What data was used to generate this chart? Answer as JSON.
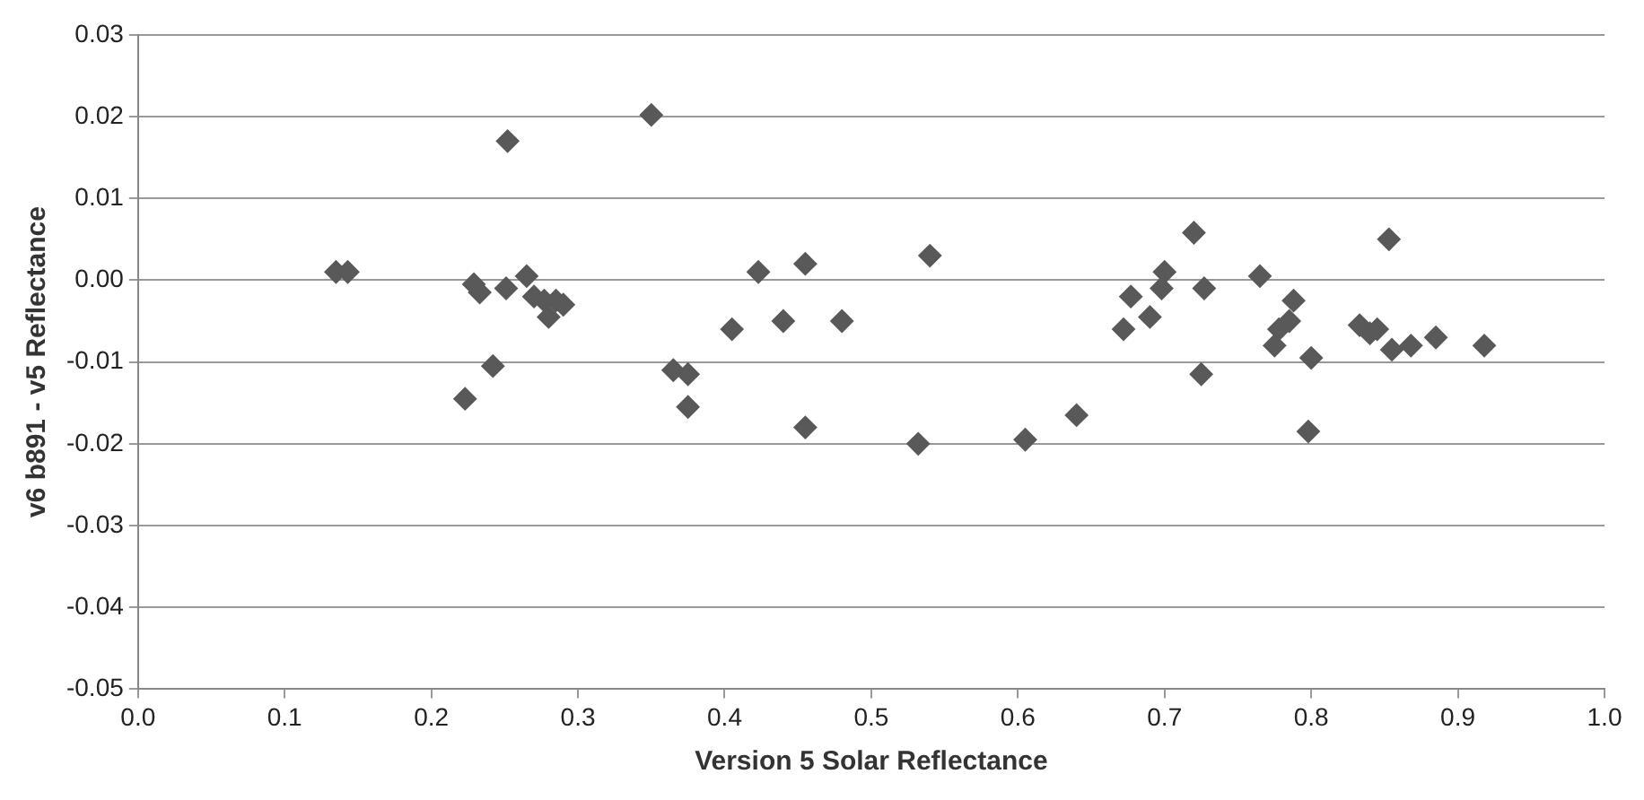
{
  "chart_data": {
    "type": "scatter",
    "xlabel": "Version 5 Solar Reflectance",
    "ylabel": "v6 b891 - v5 Reflectance",
    "x": [
      0.135,
      0.143,
      0.223,
      0.229,
      0.233,
      0.242,
      0.251,
      0.252,
      0.265,
      0.27,
      0.277,
      0.28,
      0.285,
      0.29,
      0.35,
      0.365,
      0.375,
      0.375,
      0.405,
      0.423,
      0.44,
      0.455,
      0.455,
      0.48,
      0.532,
      0.54,
      0.605,
      0.64,
      0.672,
      0.677,
      0.69,
      0.698,
      0.7,
      0.72,
      0.725,
      0.727,
      0.765,
      0.775,
      0.778,
      0.785,
      0.788,
      0.798,
      0.8,
      0.833,
      0.84,
      0.845,
      0.853,
      0.855,
      0.868,
      0.885,
      0.918
    ],
    "values": [
      0.001,
      0.001,
      -0.0145,
      -0.0005,
      -0.0015,
      -0.0105,
      -0.001,
      0.017,
      0.0005,
      -0.002,
      -0.0025,
      -0.0045,
      -0.0025,
      -0.003,
      0.0202,
      -0.011,
      -0.0115,
      -0.0155,
      -0.006,
      0.001,
      -0.005,
      0.002,
      -0.018,
      -0.005,
      -0.02,
      0.003,
      -0.0195,
      -0.0165,
      -0.006,
      -0.002,
      -0.0045,
      -0.001,
      0.001,
      0.0058,
      -0.0115,
      -0.001,
      0.0005,
      -0.008,
      -0.006,
      -0.005,
      -0.0025,
      -0.0185,
      -0.0095,
      -0.0055,
      -0.0065,
      -0.006,
      0.005,
      -0.0085,
      -0.008,
      -0.007,
      -0.008
    ],
    "color": "#595959",
    "marker": "diamond",
    "grid": "y",
    "legend": false,
    "xlim": [
      0,
      1
    ],
    "xticks": [
      {
        "value": 0,
        "label": "0.0"
      },
      {
        "value": 0.1,
        "label": "0.1"
      },
      {
        "value": 0.2,
        "label": "0.2"
      },
      {
        "value": 0.3,
        "label": "0.3"
      },
      {
        "value": 0.4,
        "label": "0.4"
      },
      {
        "value": 0.5,
        "label": "0.5"
      },
      {
        "value": 0.6,
        "label": "0.6"
      },
      {
        "value": 0.7,
        "label": "0.7"
      },
      {
        "value": 0.8,
        "label": "0.8"
      },
      {
        "value": 0.9,
        "label": "0.9"
      },
      {
        "value": 1,
        "label": "1.0"
      }
    ],
    "ylim": [
      -0.05,
      0.03
    ],
    "yticks": [
      {
        "value": -0.05,
        "label": "-0.05"
      },
      {
        "value": -0.04,
        "label": "-0.04"
      },
      {
        "value": -0.03,
        "label": "-0.03"
      },
      {
        "value": -0.02,
        "label": "-0.02"
      },
      {
        "value": -0.01,
        "label": "-0.01"
      },
      {
        "value": 0,
        "label": "0.00"
      },
      {
        "value": 0.01,
        "label": "0.01"
      },
      {
        "value": 0.02,
        "label": "0.02"
      },
      {
        "value": 0.03,
        "label": "0.03"
      }
    ]
  }
}
